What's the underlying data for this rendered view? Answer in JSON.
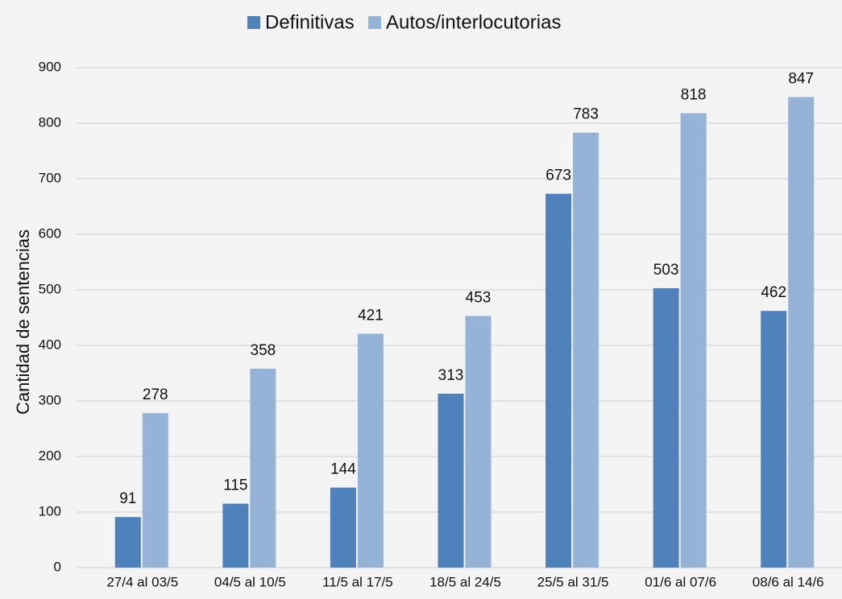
{
  "chart_data": {
    "type": "bar",
    "y_label": "Cantidad de sentencias",
    "categories": [
      "27/4 al 03/5",
      "04/5 al 10/5",
      "11/5 al 17/5",
      "18/5 al 24/5",
      "25/5 al 31/5",
      "01/6 al 07/6",
      "08/6 al 14/6"
    ],
    "series": [
      {
        "name": "Definitivas",
        "color": "#4f81bd",
        "values": [
          91,
          115,
          144,
          313,
          673,
          503,
          462
        ]
      },
      {
        "name": "Autos/interlocutorias",
        "color": "#95b3d7",
        "values": [
          278,
          358,
          421,
          453,
          783,
          818,
          847
        ]
      }
    ],
    "ylim": [
      0,
      900
    ],
    "yticks": [
      0,
      100,
      200,
      300,
      400,
      500,
      600,
      700,
      800,
      900
    ],
    "grid": true,
    "legend": "top"
  }
}
